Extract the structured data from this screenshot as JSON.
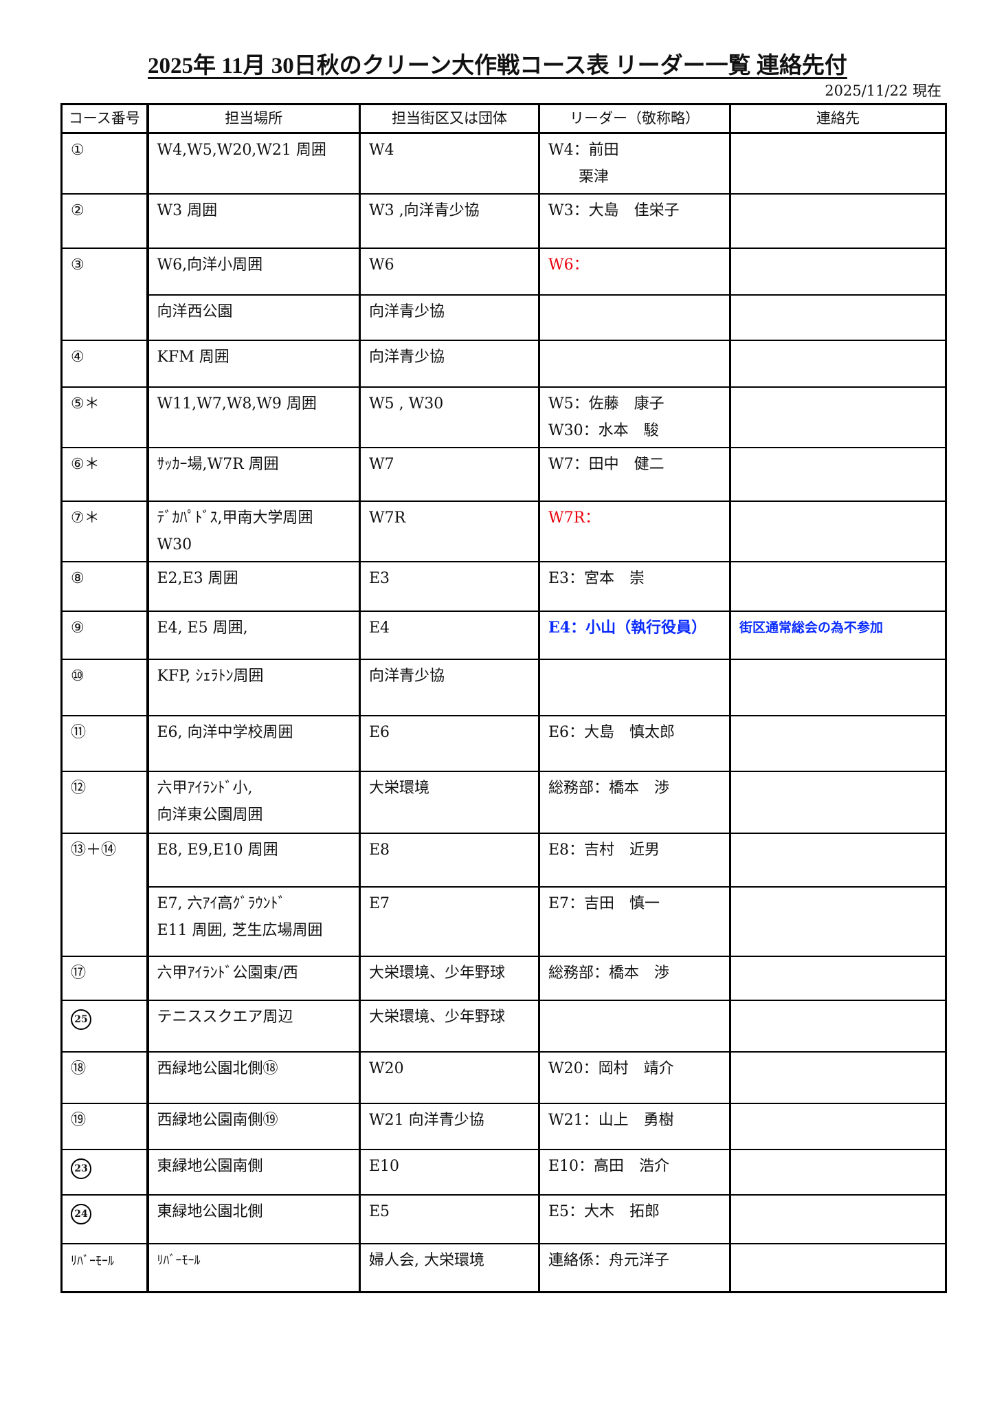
{
  "title": "2025年 11月 30日秋のクリーン大作戦コース表 リーダー一覧 連絡先付",
  "as_of": "2025/11/22 現在",
  "headers": [
    "コース番号",
    "担当場所",
    "担当街区又は団体",
    "リーダー（敬称略）",
    "連絡先"
  ],
  "colors": {
    "red": "#e8000b",
    "blue": "#0a2bff"
  },
  "courses": [
    {
      "course": "①",
      "rows": [
        {
          "place": [
            "W4,W5,W20,W21 周囲"
          ],
          "group": [
            "W4"
          ],
          "leader": [
            "W4：前田",
            "　　栗津"
          ],
          "contact": ""
        }
      ]
    },
    {
      "course": "②",
      "rows": [
        {
          "place": [
            "W3 周囲"
          ],
          "group": [
            "W3 ,向洋青少協"
          ],
          "leader": [
            "W3：大島　佳栄子"
          ],
          "contact": ""
        }
      ]
    },
    {
      "course": "③",
      "rows": [
        {
          "place": [
            "W6,向洋小周囲"
          ],
          "group": [
            "W6"
          ],
          "leader": [
            "W6："
          ],
          "leader_style": "red",
          "contact": ""
        },
        {
          "place": [
            "向洋西公園"
          ],
          "group": [
            "向洋青少協"
          ],
          "leader": [],
          "contact": ""
        }
      ]
    },
    {
      "course": "④",
      "rows": [
        {
          "place": [
            "KFM 周囲"
          ],
          "group": [
            "向洋青少協"
          ],
          "leader": [],
          "contact": ""
        }
      ]
    },
    {
      "course": "⑤＊",
      "rows": [
        {
          "place": [
            "W11,W7,W8,W9 周囲"
          ],
          "group": [
            "W5 , W30"
          ],
          "leader": [
            "W5：佐藤　康子",
            "W30：水本　駿"
          ],
          "contact": ""
        }
      ]
    },
    {
      "course": "⑥＊",
      "rows": [
        {
          "place": [
            "ｻｯｶｰ場,W7R 周囲"
          ],
          "group": [
            "W7"
          ],
          "leader": [
            "W7：田中　健二"
          ],
          "contact": ""
        }
      ]
    },
    {
      "course": "⑦＊",
      "rows": [
        {
          "place": [
            "ﾃﾞｶﾊﾟﾄﾞｽ,甲南大学周囲",
            "W30"
          ],
          "group": [
            "W7R"
          ],
          "leader": [
            "W7R："
          ],
          "leader_style": "red",
          "contact": ""
        }
      ]
    },
    {
      "course": "⑧",
      "rows": [
        {
          "place": [
            "E2,E3 周囲"
          ],
          "group": [
            "E3"
          ],
          "leader": [
            "E3：宮本　崇"
          ],
          "contact": ""
        }
      ]
    },
    {
      "course": "⑨",
      "rows": [
        {
          "place": [
            "E4, E5 周囲,"
          ],
          "group": [
            "E4"
          ],
          "leader": [
            "E4：小山（執行役員）"
          ],
          "leader_style": "blue",
          "contact": "街区通常総会の為不参加",
          "contact_style": "blue-small"
        }
      ]
    },
    {
      "course": "⑩",
      "rows": [
        {
          "place": [
            "KFP, ｼｪﾗﾄﾝ周囲"
          ],
          "group": [
            "向洋青少協"
          ],
          "leader": [],
          "contact": ""
        }
      ]
    },
    {
      "course": "⑪",
      "rows": [
        {
          "place": [
            "E6, 向洋中学校周囲"
          ],
          "group": [
            "E6"
          ],
          "leader": [
            "E6：大島　慎太郎"
          ],
          "contact": ""
        }
      ]
    },
    {
      "course": "⑫",
      "rows": [
        {
          "place": [
            "六甲ｱｲﾗﾝﾄﾞ小,",
            "向洋東公園周囲"
          ],
          "group": [
            "大栄環境"
          ],
          "leader": [
            "総務部：橋本　渉"
          ],
          "contact": ""
        }
      ]
    },
    {
      "course": "⑬＋⑭",
      "rows": [
        {
          "place": [
            "E8, E9,E10 周囲"
          ],
          "group": [
            "E8"
          ],
          "leader": [
            "E8：吉村　近男"
          ],
          "contact": ""
        },
        {
          "place": [
            "E7, 六ｱｲ高ｸﾞﾗｳﾝﾄﾞ",
            "E11 周囲, 芝生広場周囲"
          ],
          "group": [
            "E7"
          ],
          "leader": [
            "E7：吉田　慎一"
          ],
          "contact": ""
        }
      ]
    },
    {
      "course": "⑰",
      "rows": [
        {
          "place": [
            "六甲ｱｲﾗﾝﾄﾞ公園東/西"
          ],
          "group": [
            "大栄環境、少年野球"
          ],
          "leader": [
            "総務部：橋本　渉"
          ],
          "contact": ""
        }
      ]
    },
    {
      "course": "25",
      "course_style": "circ",
      "rows": [
        {
          "place": [
            "テニススクエア周辺"
          ],
          "group": [
            "大栄環境、少年野球"
          ],
          "leader": [],
          "contact": ""
        }
      ]
    },
    {
      "course": "⑱",
      "rows": [
        {
          "place": [
            "西緑地公園北側⑱"
          ],
          "group": [
            "W20"
          ],
          "leader": [
            "W20：岡村　靖介"
          ],
          "contact": ""
        }
      ]
    },
    {
      "course": "⑲",
      "rows": [
        {
          "place": [
            "西緑地公園南側⑲"
          ],
          "group": [
            "W21 向洋青少協"
          ],
          "leader": [
            "W21：山上　勇樹"
          ],
          "contact": ""
        }
      ]
    },
    {
      "course": "23",
      "course_style": "circ",
      "rows": [
        {
          "place": [
            "東緑地公園南側"
          ],
          "group": [
            "E10"
          ],
          "leader": [
            "E10：高田　浩介"
          ],
          "contact": ""
        }
      ]
    },
    {
      "course": "24",
      "course_style": "circ",
      "rows": [
        {
          "place": [
            "東緑地公園北側"
          ],
          "group": [
            "E5"
          ],
          "leader": [
            "E5：大木　拓郎"
          ],
          "contact": ""
        }
      ]
    },
    {
      "course": "ﾘﾊﾞｰﾓｰﾙ",
      "course_style": "small",
      "rows": [
        {
          "place": [
            "ﾘﾊﾞｰﾓｰﾙ"
          ],
          "place_style": "small",
          "group": [
            "婦人会, 大栄環境"
          ],
          "leader": [
            "連絡係：舟元洋子"
          ],
          "contact": ""
        }
      ]
    }
  ]
}
